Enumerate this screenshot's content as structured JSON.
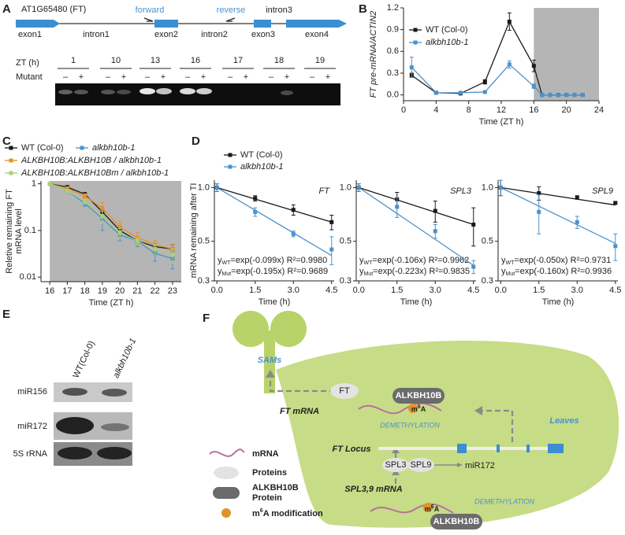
{
  "panel_labels": [
    "A",
    "B",
    "C",
    "D",
    "E",
    "F"
  ],
  "gene_diagram": {
    "title": "AT1G65480 (FT)",
    "exons": [
      "exon1",
      "exon2",
      "exon3",
      "exon4"
    ],
    "introns": [
      "intron1",
      "intron2",
      "intron3"
    ],
    "primers": [
      "forward",
      "reverse"
    ]
  },
  "gel_a": {
    "row_labels": [
      "ZT (h)",
      "Mutant"
    ],
    "lanes": [
      "1",
      "10",
      "13",
      "16",
      "17",
      "18",
      "19"
    ],
    "genotypes": [
      "–",
      "+"
    ]
  },
  "chart_data": [
    {
      "type": "line",
      "ylabel": "FT pre-mRNA/ACTIN2",
      "xlabel": "Time (ZT h)",
      "x": [
        1,
        4,
        7,
        10,
        13,
        16,
        17,
        18,
        19,
        20,
        21,
        22
      ],
      "xlim": [
        0,
        24
      ],
      "xticks": [
        0,
        4,
        8,
        12,
        16,
        20,
        24
      ],
      "ylim": [
        -0.08,
        1.2
      ],
      "yticks": [
        {
          "value": 0,
          "label": "0.0"
        },
        0.3,
        0.6,
        0.9,
        1.2
      ],
      "shaded_xrange": [
        16,
        24
      ],
      "shade_color": "#b5b5b5",
      "legend": "upper left",
      "series": [
        {
          "name": "WT (Col-0)",
          "color": "#1a1a1a",
          "values": [
            0.27,
            0.03,
            0.02,
            0.18,
            1.01,
            0.4,
            0,
            0,
            0,
            0,
            0,
            0
          ],
          "errors": [
            0.03,
            0.01,
            0.01,
            0.03,
            0.12,
            0.08,
            0,
            0,
            0,
            0.01,
            0,
            0
          ]
        },
        {
          "name": "alkbh10b-1",
          "color": "#4b92cc",
          "values": [
            0.38,
            0.03,
            0.03,
            0.04,
            0.42,
            0.12,
            0,
            0,
            0,
            0,
            0,
            0
          ],
          "errors": [
            0.14,
            0.01,
            0.01,
            0.01,
            0.05,
            0.03,
            0,
            0,
            0,
            0,
            0,
            0
          ]
        }
      ]
    },
    {
      "type": "line",
      "ylabel": [
        "Reletive remaining FT",
        "mRNA level"
      ],
      "xlabel": "Time (ZT h)",
      "x": [
        16,
        17,
        18,
        19,
        20,
        21,
        22,
        23
      ],
      "xlim": [
        15.5,
        23.5
      ],
      "xticks": [
        16,
        17,
        18,
        19,
        20,
        21,
        22,
        23
      ],
      "log_y": true,
      "ylim": [
        0.008,
        1.15
      ],
      "yticks": [
        0.01,
        0.1,
        1
      ],
      "shaded_xrange": [
        16,
        23.5
      ],
      "shade_color": "#b5b5b5",
      "legend": "top",
      "series": [
        {
          "name": "WT (Col-0)",
          "color": "#1a1a1a",
          "values": [
            1,
            0.85,
            0.6,
            0.25,
            0.1,
            0.06,
            0.045,
            0.04
          ],
          "errors": [
            0,
            0.05,
            0.05,
            0.05,
            0.02,
            0.01,
            0.008,
            0.01
          ]
        },
        {
          "name": "alkbh10b-1",
          "color": "#4b92cc",
          "values": [
            1,
            0.7,
            0.38,
            0.18,
            0.08,
            0.06,
            0.032,
            0.025
          ],
          "errors": [
            0,
            0.06,
            0.05,
            0.08,
            0.02,
            0.015,
            0.01,
            0.01
          ]
        },
        {
          "name": "ALKBH10B:ALKBH10B / alkbh10b-1",
          "color": "#e8902a",
          "values": [
            1,
            0.8,
            0.55,
            0.3,
            0.12,
            0.07,
            0.05,
            0.04
          ],
          "errors": [
            0,
            0.05,
            0.06,
            0.1,
            0.04,
            0.02,
            0.01,
            0.01
          ]
        },
        {
          "name": "ALKBH10B:ALKBH10Bm / alkbh10b-1",
          "color": "#a8d07a",
          "values": [
            1,
            0.7,
            0.42,
            0.2,
            0.09,
            0.06,
            0.04,
            0.03
          ],
          "errors": [
            0,
            0.05,
            0.05,
            0.06,
            0.02,
            0.01,
            0.01,
            0.01
          ]
        }
      ]
    },
    {
      "type": "line",
      "title": "FT",
      "ylabel": "mRNA remaining after TI",
      "xlabel": "Time (h)",
      "x": [
        0,
        1.5,
        3,
        4.5
      ],
      "xlim": [
        -0.1,
        4.6
      ],
      "xticks": [
        {
          "value": 0,
          "label": "0.0"
        },
        1.5,
        {
          "value": 3,
          "label": "3.0"
        },
        4.5
      ],
      "log_y": true,
      "ylim": [
        0.3,
        1.1
      ],
      "yticks": [
        0.3,
        0.5,
        {
          "value": 1,
          "label": "1.0"
        }
      ],
      "legend": "top",
      "series": [
        {
          "name": "WT (Col-0)",
          "color": "#1a1a1a",
          "values": [
            1.0,
            0.87,
            0.75,
            0.64
          ],
          "errors": [
            0.05,
            0.03,
            0.05,
            0.06
          ],
          "fit_rate": -0.099,
          "equation": {
            "lead": "y",
            "sub": "WT",
            "rest": "=exp(-0.099x) R²=0.9980"
          }
        },
        {
          "name": "alkbh10b-1",
          "color": "#4b92cc",
          "values": [
            1.0,
            0.73,
            0.55,
            0.45
          ],
          "errors": [
            0.05,
            0.04,
            0.02,
            0.08
          ],
          "fit_rate": -0.195,
          "equation": {
            "lead": "y",
            "sub": "Mut",
            "rest": "=exp(-0.195x) R²=0.9689"
          }
        }
      ]
    },
    {
      "type": "line",
      "title": "SPL3",
      "xlabel": "Time (h)",
      "x": [
        0,
        1.5,
        3,
        4.5
      ],
      "xlim": [
        -0.1,
        4.6
      ],
      "xticks": [
        {
          "value": 0,
          "label": "0.0"
        },
        1.5,
        {
          "value": 3,
          "label": "3.0"
        },
        4.5
      ],
      "log_y": true,
      "ylim": [
        0.3,
        1.1
      ],
      "yticks": [
        0.3,
        0.5,
        {
          "value": 1,
          "label": "1.0"
        }
      ],
      "series": [
        {
          "color": "#1a1a1a",
          "values": [
            1.0,
            0.86,
            0.74,
            0.62
          ],
          "errors": [
            0.05,
            0.08,
            0.1,
            0.15
          ],
          "fit_rate": -0.106,
          "equation": {
            "lead": "y",
            "sub": "WT",
            "rest": "=exp(-0.106x) R²=0.9962"
          }
        },
        {
          "color": "#4b92cc",
          "values": [
            1.0,
            0.78,
            0.57,
            0.36
          ],
          "errors": [
            0.05,
            0.1,
            0.05,
            0.03
          ],
          "fit_rate": -0.223,
          "equation": {
            "lead": "y",
            "sub": "Mut",
            "rest": "=exp(-0.223x) R²=0.9835"
          }
        }
      ]
    },
    {
      "type": "line",
      "title": "SPL9",
      "xlabel": "Time (h)",
      "x": [
        0,
        1.5,
        3,
        4.5
      ],
      "xlim": [
        -0.1,
        4.6
      ],
      "xticks": [
        {
          "value": 0,
          "label": "0.0"
        },
        1.5,
        {
          "value": 3,
          "label": "3.0"
        },
        4.5
      ],
      "log_y": true,
      "ylim": [
        0.3,
        1.1
      ],
      "yticks": [
        0.3,
        0.5,
        {
          "value": 1,
          "label": "1.0"
        }
      ],
      "series": [
        {
          "color": "#1a1a1a",
          "values": [
            1.0,
            0.93,
            0.88,
            0.82
          ],
          "errors": [
            0.1,
            0.08,
            0.02,
            0.01
          ],
          "fit_rate": -0.05,
          "equation": {
            "lead": "y",
            "sub": "WT",
            "rest": "=exp(-0.050x) R²=0.9731"
          }
        },
        {
          "color": "#4b92cc",
          "values": [
            1.0,
            0.73,
            0.64,
            0.47
          ],
          "errors": [
            0.1,
            0.18,
            0.05,
            0.08
          ],
          "fit_rate": -0.16,
          "equation": {
            "lead": "y",
            "sub": "Mut",
            "rest": "=exp(-0.160x) R²=0.9936"
          }
        }
      ]
    }
  ],
  "gel_e": {
    "lanes": [
      "WT(Col-0)",
      "alkbh10b-1"
    ],
    "rows": [
      "miR156",
      "miR172",
      "5S rRNA"
    ]
  },
  "model": {
    "sams": "SAMs",
    "ft_protein": "FT",
    "alkbh10b": "ALKBH10B",
    "ft_mrna": "FT mRNA",
    "m6a": {
      "lead": "m",
      "sup": "6",
      "rest": "A"
    },
    "demethylation": "DEMETHYLATION",
    "leaves": "Leaves",
    "ft_locus": "FT Locus",
    "spl3": "SPL3",
    "spl9": "SPL9",
    "mir172": "miR172",
    "spl_mrna": "SPL3,9 mRNA",
    "legend": {
      "mrna": "mRNA",
      "proteins": "Proteins",
      "alkbh10b_protein": [
        "ALKBH10B",
        "Protein"
      ],
      "m6a": {
        "lead": "m",
        "sup": "6",
        "rest": "A modification"
      }
    }
  }
}
